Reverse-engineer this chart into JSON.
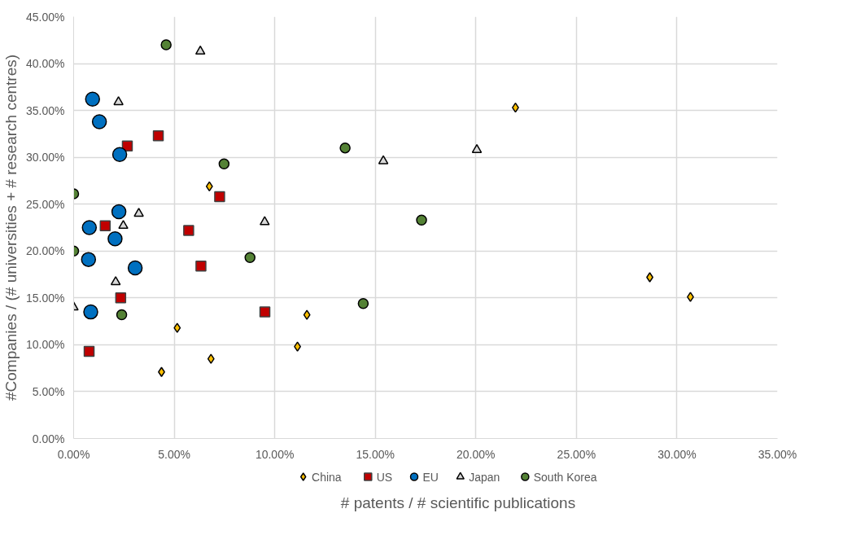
{
  "chart_data": {
    "type": "scatter",
    "xlabel": "# patents / # scientific publications",
    "ylabel": "#Companies / (# universities + # research centres)",
    "xlim": [
      0,
      35
    ],
    "ylim": [
      0,
      45
    ],
    "xticks": [
      {
        "value": 0,
        "label": "0.00%"
      },
      {
        "value": 5,
        "label": "5.00%"
      },
      {
        "value": 10,
        "label": "10.00%"
      },
      {
        "value": 15,
        "label": "15.00%"
      },
      {
        "value": 20,
        "label": "20.00%"
      },
      {
        "value": 25,
        "label": "25.00%"
      },
      {
        "value": 30,
        "label": "30.00%"
      },
      {
        "value": 35,
        "label": "35.00%"
      }
    ],
    "yticks": [
      {
        "value": 0,
        "label": "0.00%"
      },
      {
        "value": 5,
        "label": "5.00%"
      },
      {
        "value": 10,
        "label": "10.00%"
      },
      {
        "value": 15,
        "label": "15.00%"
      },
      {
        "value": 20,
        "label": "20.00%"
      },
      {
        "value": 25,
        "label": "25.00%"
      },
      {
        "value": 30,
        "label": "30.00%"
      },
      {
        "value": 35,
        "label": "35.00%"
      },
      {
        "value": 40,
        "label": "40.00%"
      },
      {
        "value": 45,
        "label": "45.00%"
      }
    ],
    "grid": true,
    "legend": "bottom",
    "series": [
      {
        "name": "China",
        "color": "#ffc000",
        "marker": "diamond",
        "x": [
          21.97,
          6.75,
          28.65,
          30.67,
          11.6,
          5.15,
          11.13,
          6.83,
          4.37
        ],
        "values": [
          35.3,
          26.9,
          17.2,
          15.1,
          13.2,
          11.8,
          9.8,
          8.5,
          7.1
        ]
      },
      {
        "name": "US",
        "color": "#c00000",
        "marker": "square",
        "x": [
          4.21,
          2.67,
          7.26,
          1.57,
          5.72,
          6.33,
          2.34,
          9.51,
          0.77
        ],
        "values": [
          32.3,
          31.2,
          25.8,
          22.7,
          22.2,
          18.4,
          15.0,
          13.5,
          9.3
        ]
      },
      {
        "name": "EU",
        "color": "#0070c0",
        "marker": "circle",
        "x": [
          0.94,
          1.28,
          2.29,
          2.25,
          0.78,
          2.06,
          0.74,
          3.06,
          0.85
        ],
        "values": [
          36.2,
          33.8,
          30.3,
          24.2,
          22.5,
          21.3,
          19.1,
          18.2,
          13.5
        ]
      },
      {
        "name": "Japan",
        "color": "#d9d9d9",
        "marker": "triangle",
        "x": [
          6.3,
          2.23,
          3.24,
          9.5,
          2.47,
          2.09,
          0.0,
          15.4,
          20.05
        ],
        "values": [
          41.3,
          35.9,
          24.0,
          23.1,
          22.7,
          16.7,
          14.0,
          29.6,
          30.8
        ]
      },
      {
        "name": "South Korea",
        "color": "#548235",
        "marker": "circle",
        "x": [
          4.6,
          7.48,
          0.0,
          0.0,
          8.77,
          2.39,
          13.5,
          17.3,
          14.4
        ],
        "values": [
          42.0,
          29.3,
          26.1,
          20.0,
          19.3,
          13.2,
          31.0,
          23.3,
          14.4
        ]
      }
    ]
  }
}
